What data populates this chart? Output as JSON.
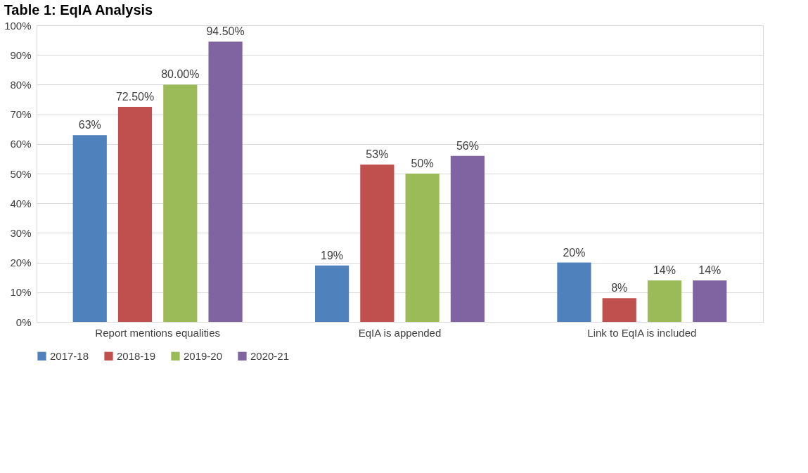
{
  "chart_data": {
    "type": "bar",
    "title": "Table 1: EqIA Analysis",
    "categories": [
      "Report mentions equalities",
      "EqIA is appended",
      "Link to EqIA is included"
    ],
    "series": [
      {
        "name": "2017-18",
        "color": "#4f81bd",
        "values": [
          63,
          19,
          20
        ],
        "value_labels": [
          "63%",
          "19%",
          "20%"
        ]
      },
      {
        "name": "2018-19",
        "color": "#c0504d",
        "values": [
          72.5,
          53,
          8
        ],
        "value_labels": [
          "72.50%",
          "53%",
          "8%"
        ]
      },
      {
        "name": "2019-20",
        "color": "#9bbb59",
        "values": [
          80,
          50,
          14
        ],
        "value_labels": [
          "80.00%",
          "50%",
          "14%"
        ]
      },
      {
        "name": "2020-21",
        "color": "#8064a2",
        "values": [
          94.5,
          56,
          14
        ],
        "value_labels": [
          "94.50%",
          "56%",
          "14%"
        ]
      }
    ],
    "ylim": [
      0,
      100
    ],
    "yticks": [
      {
        "value": 0,
        "label": "0%"
      },
      {
        "value": 10,
        "label": "10%"
      },
      {
        "value": 20,
        "label": "20%"
      },
      {
        "value": 30,
        "label": "30%"
      },
      {
        "value": 40,
        "label": "40%"
      },
      {
        "value": 50,
        "label": "50%"
      },
      {
        "value": 60,
        "label": "60%"
      },
      {
        "value": 70,
        "label": "70%"
      },
      {
        "value": 80,
        "label": "80%"
      },
      {
        "value": 90,
        "label": "90%"
      },
      {
        "value": 100,
        "label": "100%"
      }
    ],
    "grid": "y",
    "legend": "bottom"
  }
}
